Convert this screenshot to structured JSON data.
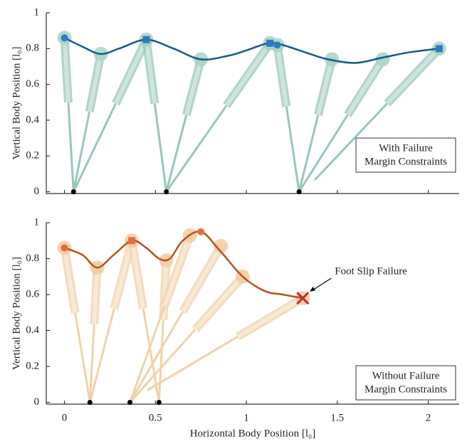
{
  "chart_data": [
    {
      "type": "trajectory",
      "ylabel": "Vertical Body Position [l₀]",
      "xlim": [
        -0.1,
        2.17
      ],
      "ylim": [
        -0.01,
        1.0
      ],
      "xticks": [
        0,
        0.5,
        1,
        1.5,
        2
      ],
      "show_xtick_labels": false,
      "yticks": [
        0,
        0.2,
        0.4,
        0.6,
        0.8,
        1
      ],
      "annotation": [
        "With Failure",
        "Margin Constraints"
      ],
      "body_color": "#a8d2c5",
      "leg_color": "#98c7b9",
      "trajectory": {
        "color": "#155a8a",
        "x": [
          0,
          0.1,
          0.2,
          0.3,
          0.45,
          0.6,
          0.75,
          0.9,
          1.0,
          1.12,
          1.2,
          1.35,
          1.45,
          1.6,
          1.75,
          1.9,
          2.06
        ],
        "y": [
          0.86,
          0.81,
          0.77,
          0.8,
          0.85,
          0.8,
          0.74,
          0.76,
          0.79,
          0.83,
          0.82,
          0.77,
          0.74,
          0.72,
          0.75,
          0.78,
          0.8
        ]
      },
      "bodies": [
        {
          "x": 0,
          "y": 0.86,
          "legs": [
            [
              0.05,
              0
            ]
          ]
        },
        {
          "x": 0.2,
          "y": 0.77,
          "legs": [
            [
              0.05,
              0
            ]
          ]
        },
        {
          "x": 0.45,
          "y": 0.85,
          "legs": [
            [
              0.05,
              0
            ],
            [
              0.56,
              0
            ]
          ]
        },
        {
          "x": 0.75,
          "y": 0.74,
          "legs": [
            [
              0.56,
              0
            ]
          ]
        },
        {
          "x": 1.13,
          "y": 0.83,
          "legs": [
            [
              0.56,
              0
            ]
          ]
        },
        {
          "x": 1.17,
          "y": 0.82,
          "legs": [
            [
              1.29,
              0
            ]
          ]
        },
        {
          "x": 1.47,
          "y": 0.74,
          "legs": [
            [
              1.29,
              0
            ]
          ]
        },
        {
          "x": 1.75,
          "y": 0.74,
          "legs": [
            [
              1.29,
              0
            ]
          ]
        },
        {
          "x": 2.06,
          "y": 0.8,
          "legs": [
            [
              1.38,
              0.07
            ]
          ]
        }
      ],
      "markers": [
        {
          "shape": "circle",
          "x": 0,
          "y": 0.86,
          "color": "#2c7dbf"
        },
        {
          "shape": "square",
          "x": 0.45,
          "y": 0.85,
          "color": "#2c7dbf"
        },
        {
          "shape": "square",
          "x": 1.13,
          "y": 0.83,
          "color": "#2c7dbf"
        },
        {
          "shape": "circle",
          "x": 1.17,
          "y": 0.82,
          "color": "#2c7dbf"
        },
        {
          "shape": "square",
          "x": 2.06,
          "y": 0.8,
          "color": "#2c7dbf"
        }
      ],
      "feet": {
        "x": [
          0.05,
          0.56,
          1.29
        ],
        "y": [
          0,
          0,
          0
        ]
      }
    },
    {
      "type": "trajectory",
      "ylabel": "Vertical Body Position [l₀]",
      "xlabel": "Horizontal Body Position [l₀]",
      "xlim": [
        -0.1,
        2.17
      ],
      "ylim": [
        -0.01,
        1.0
      ],
      "xticks": [
        0,
        0.5,
        1,
        1.5,
        2
      ],
      "show_xtick_labels": true,
      "yticks": [
        0,
        0.2,
        0.4,
        0.6,
        0.8,
        1
      ],
      "annotation": [
        "Without Failure",
        "Margin Constraints"
      ],
      "callout": "Foot Slip Failure",
      "body_color": "#f2cb9e",
      "leg_color": "#f0d2a8",
      "trajectory": {
        "color": "#b4521c",
        "x": [
          0,
          0.1,
          0.18,
          0.27,
          0.37,
          0.45,
          0.52,
          0.58,
          0.65,
          0.75,
          0.85,
          0.98,
          1.1,
          1.2,
          1.31
        ],
        "y": [
          0.86,
          0.82,
          0.75,
          0.82,
          0.9,
          0.86,
          0.8,
          0.8,
          0.9,
          0.95,
          0.85,
          0.7,
          0.62,
          0.6,
          0.58
        ]
      },
      "bodies": [
        {
          "x": 0,
          "y": 0.86,
          "legs": [
            [
              0.14,
              0
            ]
          ]
        },
        {
          "x": 0.18,
          "y": 0.75,
          "legs": [
            [
              0.14,
              0
            ]
          ]
        },
        {
          "x": 0.37,
          "y": 0.9,
          "legs": [
            [
              0.14,
              0
            ],
            [
              0.52,
              0
            ]
          ]
        },
        {
          "x": 0.56,
          "y": 0.79,
          "legs": [
            [
              0.52,
              0
            ]
          ]
        },
        {
          "x": 0.69,
          "y": 0.93,
          "legs": [
            [
              0.36,
              0
            ]
          ]
        },
        {
          "x": 0.86,
          "y": 0.87,
          "legs": [
            [
              0.36,
              0
            ]
          ]
        },
        {
          "x": 0.98,
          "y": 0.7,
          "legs": [
            [
              0.36,
              0
            ]
          ]
        },
        {
          "x": 1.31,
          "y": 0.58,
          "legs": [
            [
              0.46,
              0.07
            ]
          ]
        }
      ],
      "markers": [
        {
          "shape": "circle",
          "x": 0,
          "y": 0.86,
          "color": "#e0703f"
        },
        {
          "shape": "square",
          "x": 0.37,
          "y": 0.9,
          "color": "#e0703f"
        },
        {
          "shape": "circle",
          "x": 0.75,
          "y": 0.95,
          "color": "#e0703f"
        },
        {
          "shape": "cross",
          "x": 1.31,
          "y": 0.58,
          "color": "#c62828"
        }
      ],
      "feet": {
        "x": [
          0.14,
          0.36,
          0.52
        ],
        "y": [
          0,
          0,
          0
        ]
      }
    }
  ]
}
